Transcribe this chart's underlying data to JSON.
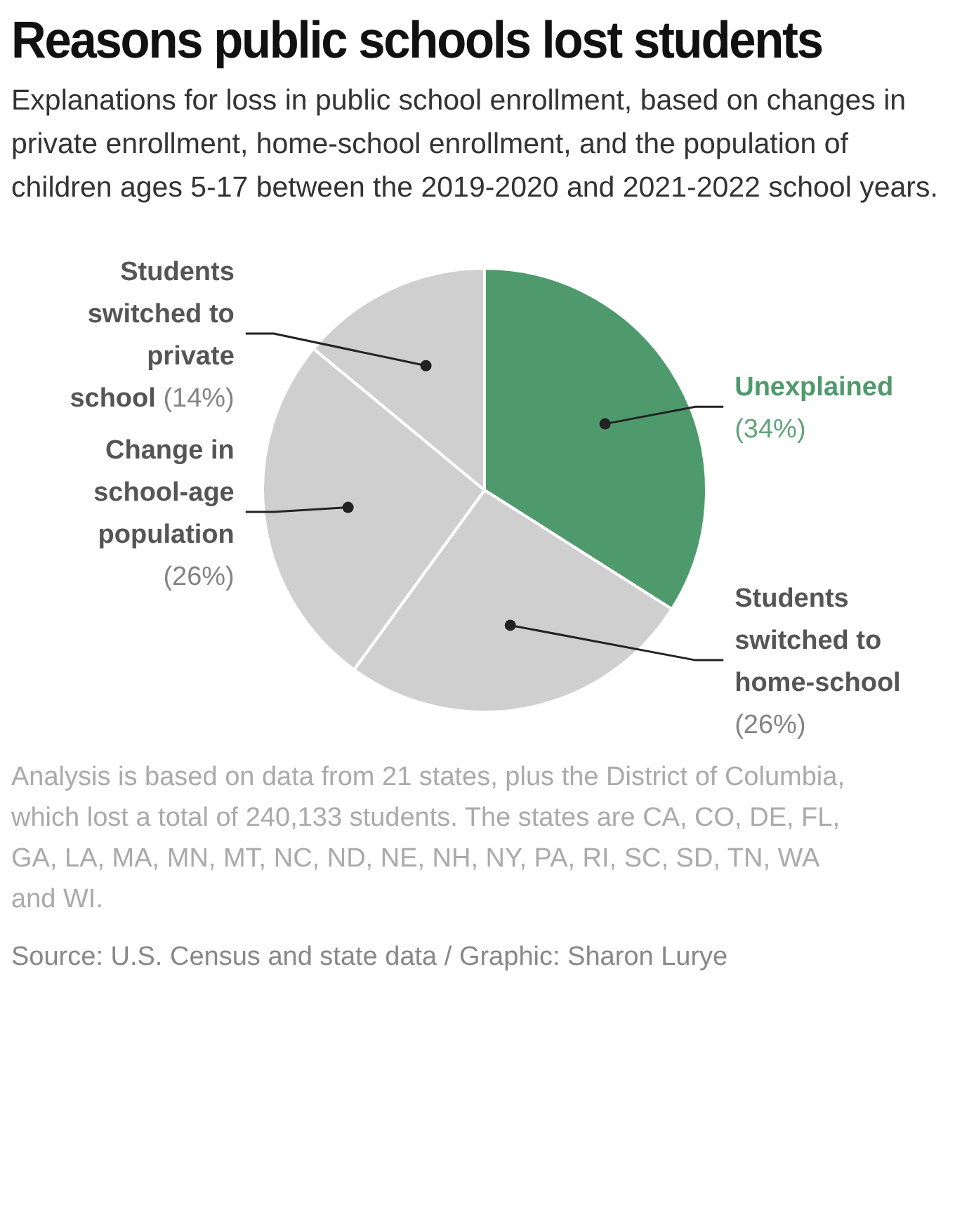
{
  "chart_data": {
    "type": "pie",
    "title": "Reasons public schools lost students",
    "subtitle": "Explanations for loss in public school enrollment, based on changes in private enrollment, home-school enrollment, and the population of children ages 5-17 between the 2019-2020 and 2021-2022 school years.",
    "categories": [
      "Unexplained",
      "Students switched to home-school",
      "Change in school-age population",
      "Students switched to private school"
    ],
    "values": [
      34,
      26,
      26,
      14
    ],
    "value_labels": [
      "(34%)",
      "(26%)",
      "(26%)",
      "(14%)"
    ],
    "colors": [
      "#4f9a6d",
      "#cfcfcf",
      "#cfcfcf",
      "#cfcfcf"
    ],
    "legend": false,
    "annotations": [
      "Analysis is based on data from 21 states, plus the District of Columbia, which lost a total of 240,133 students. The states are CA, CO, DE, FL, GA, LA, MA, MN, MT, NC, ND, NE, NH, NY, PA, RI, SC, SD, TN, WA and WI.",
      "Source: U.S. Census and state data / Graphic: Sharon Lurye"
    ]
  }
}
